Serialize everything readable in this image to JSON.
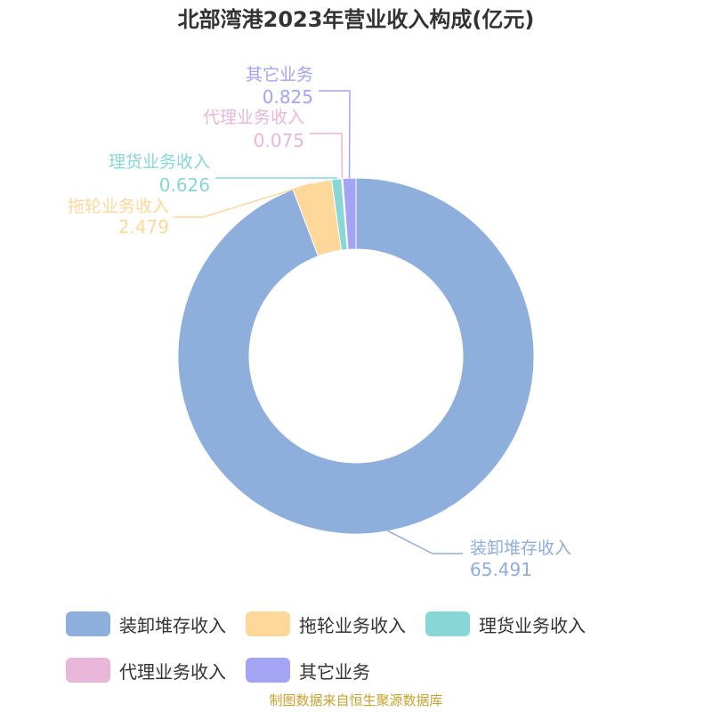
{
  "title": "北部湾港2023年营业收入构成(亿元)",
  "source": "制图数据来自恒生聚源数据库",
  "chart_data": {
    "type": "pie",
    "donut": true,
    "legend_position": "bottom",
    "slices": [
      {
        "label": "装卸堆存收入",
        "value": 65.491,
        "value_text": "65.491",
        "color": "#8eaedb"
      },
      {
        "label": "拖轮业务收入",
        "value": 2.479,
        "value_text": "2.479",
        "color": "#fdd89a"
      },
      {
        "label": "理货业务收入",
        "value": 0.626,
        "value_text": "0.626",
        "color": "#88d6d6"
      },
      {
        "label": "代理业务收入",
        "value": 0.075,
        "value_text": "0.075",
        "color": "#e8b6d8"
      },
      {
        "label": "其它业务",
        "value": 0.825,
        "value_text": "0.825",
        "color": "#a4a4f4"
      }
    ]
  }
}
